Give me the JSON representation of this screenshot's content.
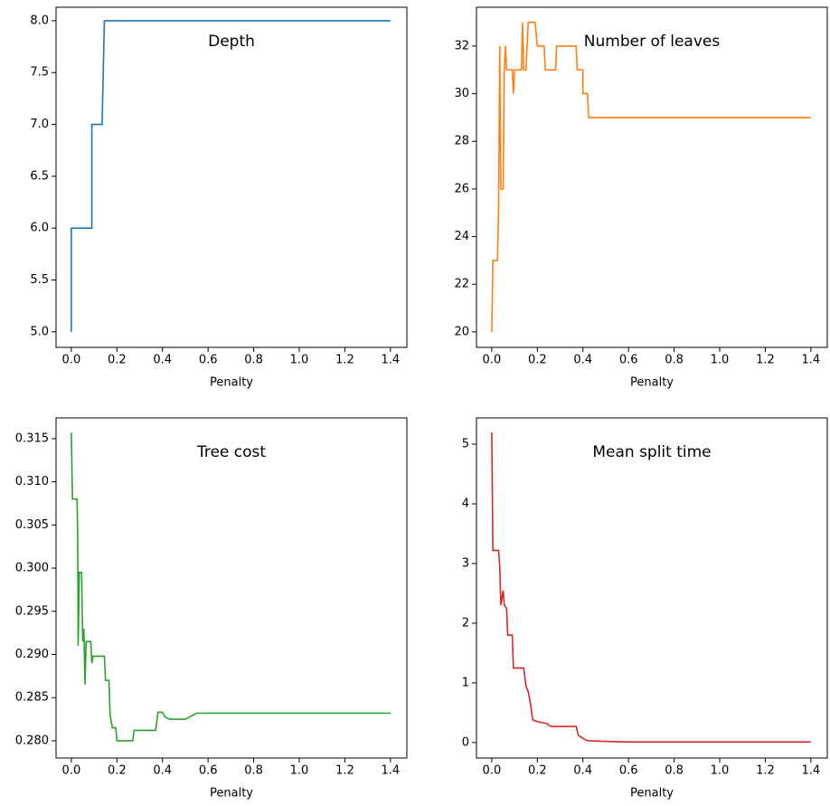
{
  "chart_data": [
    {
      "type": "line",
      "title": "Depth",
      "xlabel": "Penalty",
      "color": "#1f77b4",
      "x": [
        0,
        0,
        0.09,
        0.09,
        0.135,
        0.145,
        1.4
      ],
      "values": [
        5,
        6,
        6,
        7,
        7,
        8,
        8
      ],
      "xlim": [
        -0.067,
        1.472
      ],
      "ylim": [
        4.85,
        8.13
      ],
      "xticks": [
        {
          "value": 0,
          "label": "0.0"
        },
        0.2,
        0.4,
        0.6,
        0.8,
        {
          "value": 1,
          "label": "1.0"
        },
        1.2,
        1.4
      ],
      "yticks": [
        {
          "value": 5,
          "label": "5.0"
        },
        5.5,
        {
          "value": 6,
          "label": "6.0"
        },
        6.5,
        {
          "value": 7,
          "label": "7.0"
        },
        7.5,
        {
          "value": 8,
          "label": "8.0"
        }
      ]
    },
    {
      "type": "line",
      "title": "Number of leaves",
      "xlabel": "Penalty",
      "color": "#ff7f0e",
      "x": [
        0,
        0.005,
        0.025,
        0.03,
        0.035,
        0.04,
        0.05,
        0.055,
        0.06,
        0.065,
        0.09,
        0.095,
        0.1,
        0.13,
        0.135,
        0.14,
        0.15,
        0.16,
        0.19,
        0.2,
        0.23,
        0.235,
        0.28,
        0.285,
        0.37,
        0.375,
        0.4,
        0.4,
        0.42,
        0.425,
        1.4
      ],
      "values": [
        20,
        23,
        23,
        25,
        32,
        26,
        26,
        31,
        32,
        31,
        31,
        30,
        31,
        31,
        33,
        31,
        31,
        33,
        33,
        32,
        32,
        31,
        31,
        32,
        32,
        31,
        31,
        30,
        30,
        29,
        29
      ],
      "xlim": [
        -0.067,
        1.472
      ],
      "ylim": [
        19.35,
        33.63
      ],
      "xticks": [
        {
          "value": 0,
          "label": "0.0"
        },
        0.2,
        0.4,
        0.6,
        0.8,
        {
          "value": 1,
          "label": "1.0"
        },
        1.2,
        1.4
      ],
      "yticks": [
        20,
        22,
        24,
        26,
        28,
        30,
        32
      ]
    },
    {
      "type": "line",
      "title": "Tree cost",
      "xlabel": "Penalty",
      "color": "#2ca02c",
      "x": [
        0,
        0.005,
        0.025,
        0.028,
        0.03,
        0.035,
        0.045,
        0.05,
        0.055,
        0.06,
        0.065,
        0.085,
        0.09,
        0.095,
        0.145,
        0.15,
        0.165,
        0.17,
        0.18,
        0.195,
        0.2,
        0.27,
        0.275,
        0.37,
        0.38,
        0.4,
        0.41,
        0.43,
        0.5,
        0.55,
        1.4
      ],
      "values": [
        0.3157,
        0.308,
        0.308,
        0.3035,
        0.291,
        0.2995,
        0.2995,
        0.2915,
        0.293,
        0.2865,
        0.2915,
        0.2915,
        0.289,
        0.2898,
        0.2898,
        0.287,
        0.287,
        0.283,
        0.2815,
        0.2815,
        0.28,
        0.28,
        0.2812,
        0.2812,
        0.2833,
        0.2833,
        0.2828,
        0.2825,
        0.2825,
        0.2832,
        0.2832
      ],
      "xlim": [
        -0.067,
        1.472
      ],
      "ylim": [
        0.278,
        0.3174
      ],
      "xticks": [
        {
          "value": 0,
          "label": "0.0"
        },
        0.2,
        0.4,
        0.6,
        0.8,
        {
          "value": 1,
          "label": "1.0"
        },
        1.2,
        1.4
      ],
      "yticks": [
        {
          "value": 0.28,
          "label": "0.280"
        },
        0.285,
        {
          "value": 0.29,
          "label": "0.290"
        },
        0.295,
        {
          "value": 0.3,
          "label": "0.300"
        },
        0.305,
        {
          "value": 0.31,
          "label": "0.310"
        },
        0.315
      ]
    },
    {
      "type": "line",
      "title": "Mean split time",
      "xlabel": "Penalty",
      "color": "#d62728",
      "x": [
        0,
        0.005,
        0.03,
        0.035,
        0.04,
        0.05,
        0.055,
        0.065,
        0.07,
        0.09,
        0.095,
        0.14,
        0.15,
        0.16,
        0.17,
        0.18,
        0.2,
        0.24,
        0.26,
        0.37,
        0.38,
        0.4,
        0.42,
        0.5,
        0.6,
        1.4
      ],
      "values": [
        5.2,
        3.22,
        3.22,
        2.95,
        2.3,
        2.55,
        2.3,
        2.25,
        1.8,
        1.8,
        1.25,
        1.25,
        0.95,
        0.85,
        0.65,
        0.38,
        0.35,
        0.32,
        0.27,
        0.27,
        0.12,
        0.07,
        0.03,
        0.02,
        0.01,
        0.01
      ],
      "xlim": [
        -0.067,
        1.472
      ],
      "ylim": [
        -0.26,
        5.44
      ],
      "xticks": [
        {
          "value": 0,
          "label": "0.0"
        },
        0.2,
        0.4,
        0.6,
        0.8,
        {
          "value": 1,
          "label": "1.0"
        },
        1.2,
        1.4
      ],
      "yticks": [
        0,
        1,
        2,
        3,
        4,
        5
      ]
    }
  ]
}
